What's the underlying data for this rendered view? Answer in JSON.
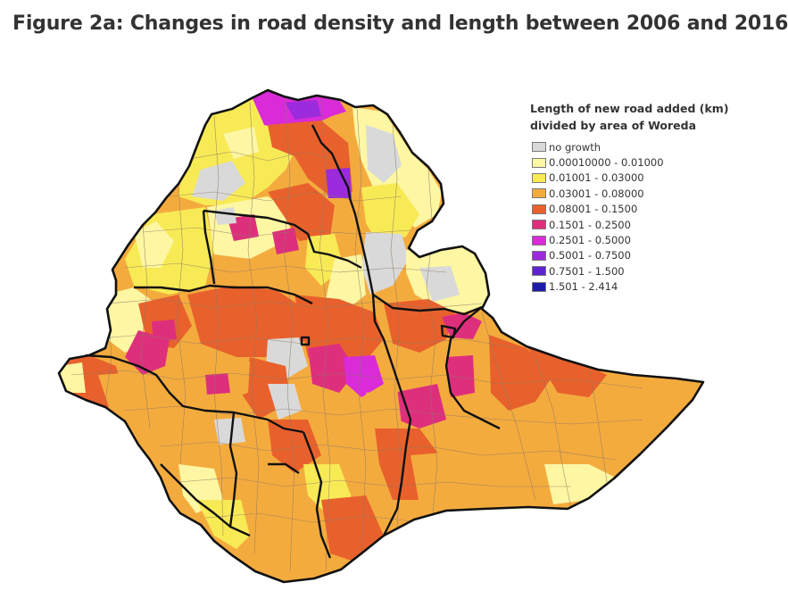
{
  "figure_title": "Figure 2a: Changes in road density and length between 2006 and 2016",
  "legend": {
    "title_line1": "Length of new road added (km)",
    "title_line2": "divided by area of Woreda",
    "items": [
      {
        "label": "no growth",
        "color": "#d9d9d9"
      },
      {
        "label": "0.00010000 - 0.01000",
        "color": "#fdf6a3"
      },
      {
        "label": "0.01001 - 0.03000",
        "color": "#f8ea55"
      },
      {
        "label": "0.03001 - 0.08000",
        "color": "#f4ab3e"
      },
      {
        "label": "0.08001 - 0.1500",
        "color": "#e8612c"
      },
      {
        "label": "0.1501 - 0.2500",
        "color": "#de2f7d"
      },
      {
        "label": "0.2501 - 0.5000",
        "color": "#d92bd8"
      },
      {
        "label": "0.5001 - 0.7500",
        "color": "#9b2bdc"
      },
      {
        "label": "0.7501 - 1.500",
        "color": "#5e23cc"
      },
      {
        "label": "1.501 - 2.414",
        "color": "#1c1ca8"
      }
    ]
  }
}
